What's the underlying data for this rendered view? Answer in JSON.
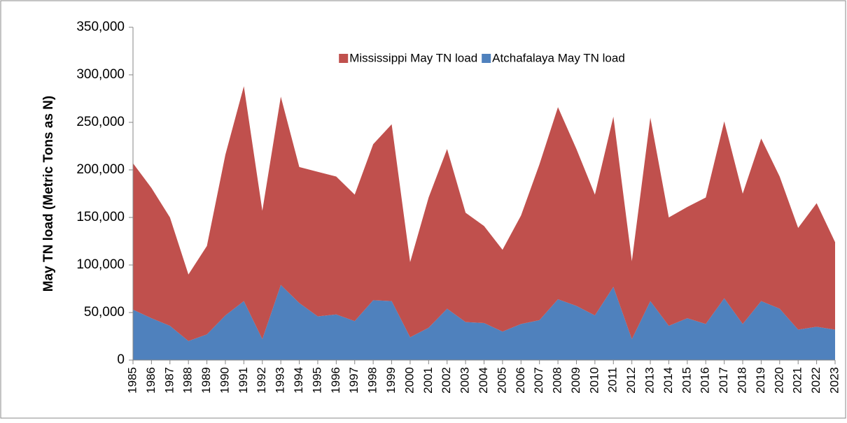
{
  "chart_data": {
    "type": "stacked-area",
    "y_label": "May TN load (Metric Tons as N)",
    "legend": "top",
    "categories": [
      "1985",
      "1986",
      "1987",
      "1988",
      "1989",
      "1990",
      "1991",
      "1992",
      "1993",
      "1994",
      "1995",
      "1996",
      "1997",
      "1998",
      "1999",
      "2000",
      "2001",
      "2002",
      "2003",
      "2004",
      "2005",
      "2006",
      "2007",
      "2008",
      "2009",
      "2010",
      "2011",
      "2012",
      "2013",
      "2014",
      "2015",
      "2016",
      "2017",
      "2018",
      "2019",
      "2020",
      "2021",
      "2022",
      "2023"
    ],
    "series": [
      {
        "name": "Mississippi May TN load",
        "color": "#c0504d",
        "values": [
          154000,
          137000,
          114000,
          70000,
          93000,
          169000,
          226000,
          135000,
          198000,
          143000,
          152000,
          145000,
          133000,
          164000,
          186000,
          79000,
          137000,
          168000,
          115000,
          102000,
          86000,
          114000,
          164000,
          202000,
          165000,
          127000,
          179000,
          82000,
          193000,
          114000,
          117000,
          133000,
          186000,
          137000,
          171000,
          139000,
          107000,
          130000,
          92000
        ]
      },
      {
        "name": "Atchafalaya May TN load",
        "color": "#4f81bd",
        "values": [
          53000,
          44000,
          36000,
          20000,
          27000,
          47000,
          62000,
          22000,
          79000,
          60000,
          46000,
          48000,
          41000,
          63000,
          62000,
          24000,
          34000,
          54000,
          40000,
          39000,
          30000,
          38000,
          42000,
          64000,
          57000,
          47000,
          77000,
          22000,
          62000,
          36000,
          44000,
          38000,
          65000,
          38000,
          62000,
          54000,
          32000,
          35000,
          32000
        ]
      }
    ],
    "ylim": [
      0,
      350000
    ],
    "yticks": [
      0,
      {
        "value": 50000,
        "label": "50,000"
      },
      {
        "value": 100000,
        "label": "100,000"
      },
      {
        "value": 150000,
        "label": "150,000"
      },
      {
        "value": 200000,
        "label": "200,000"
      },
      {
        "value": 250000,
        "label": "250,000"
      },
      {
        "value": 300000,
        "label": "300,000"
      },
      {
        "value": 350000,
        "label": "350,000"
      }
    ]
  }
}
